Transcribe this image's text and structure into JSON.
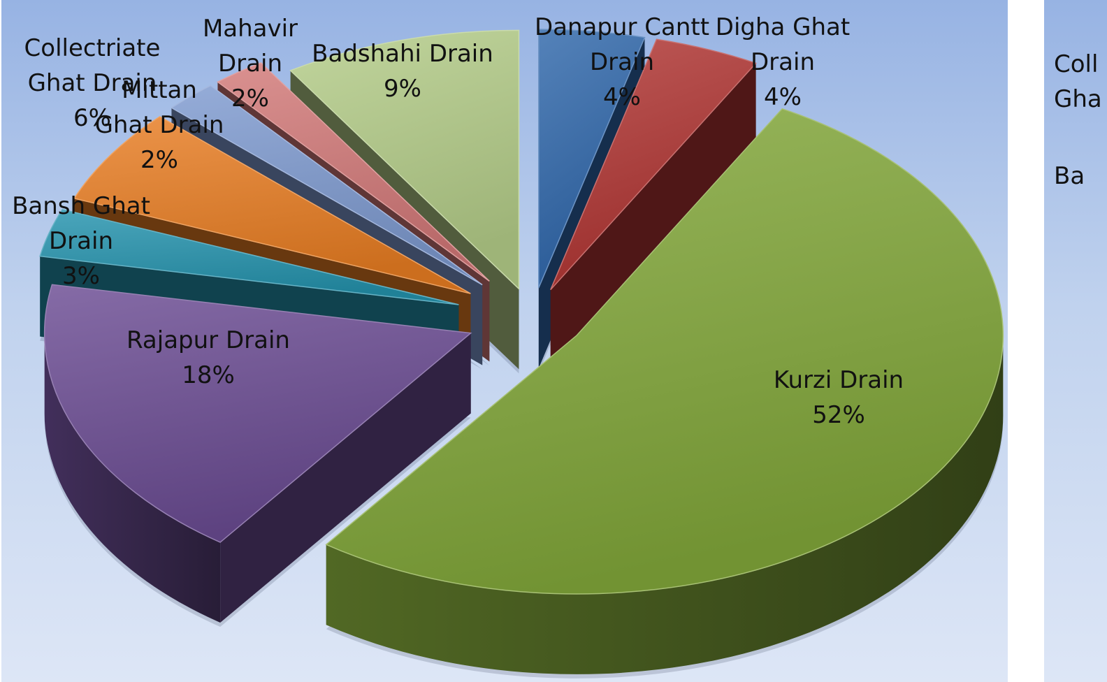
{
  "chart_data": {
    "type": "pie",
    "style": "3d-exploded",
    "slices": [
      {
        "label": "Danapur Cantt Drain",
        "percent": "4%",
        "value": 4,
        "color": "#2f66aa"
      },
      {
        "label": "Digha Ghat Drain",
        "percent": "4%",
        "value": 4,
        "color": "#b03432"
      },
      {
        "label": "Kurzi Drain",
        "percent": "52%",
        "value": 52,
        "color": "#82a73a"
      },
      {
        "label": "Rajapur Drain",
        "percent": "18%",
        "value": 18,
        "color": "#6a4b92"
      },
      {
        "label": "Bansh Ghat Drain",
        "percent": "3%",
        "value": 3,
        "color": "#2493ad"
      },
      {
        "label": "Collectriate Ghat Drain",
        "percent": "6%",
        "value": 6,
        "color": "#e87d22"
      },
      {
        "label": "Mittan Ghat Drain",
        "percent": "2%",
        "value": 2,
        "color": "#7e9ad0"
      },
      {
        "label": "Mahavir Drain",
        "percent": "2%",
        "value": 2,
        "color": "#d27978"
      },
      {
        "label": "Badshahi Drain",
        "percent": "9%",
        "value": 9,
        "color": "#b3cc88"
      }
    ]
  },
  "second_panel_fragments": [
    "Coll",
    "Gha",
    "Ba"
  ]
}
